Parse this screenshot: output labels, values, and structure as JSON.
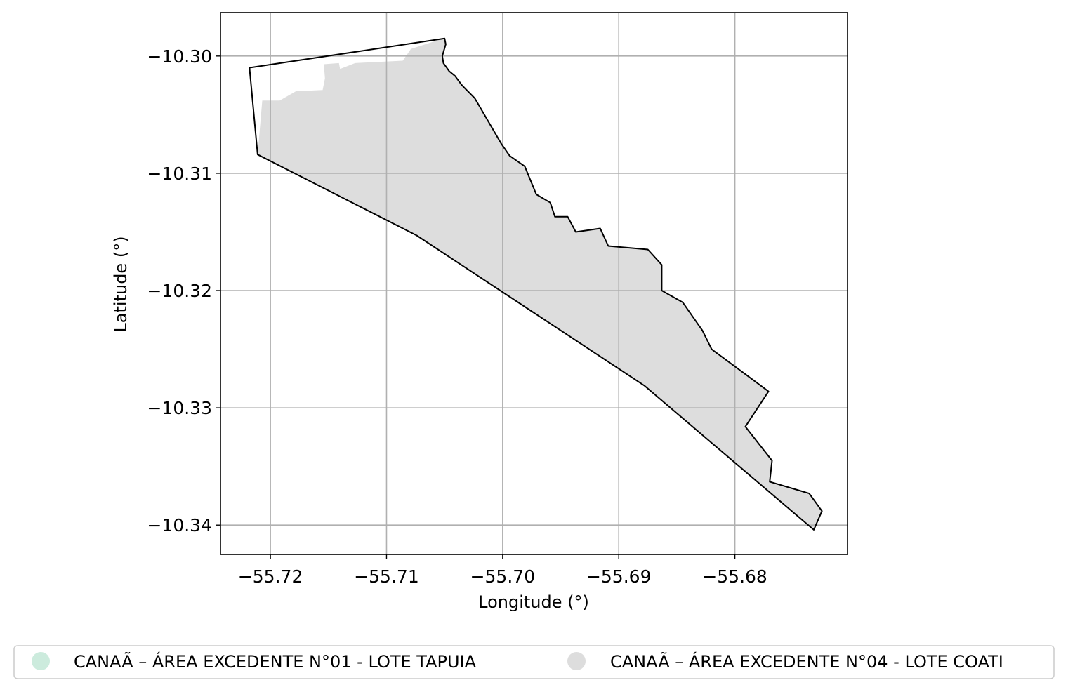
{
  "chart_data": {
    "type": "map",
    "xlabel": "Longitude (°)",
    "ylabel": "Latitude (°)",
    "xlim": [
      -55.7243,
      -55.6703
    ],
    "ylim": [
      -10.3425,
      -10.2963
    ],
    "grid": true,
    "x_ticks": [
      {
        "value": -55.72,
        "label": "−55.72"
      },
      {
        "value": -55.71,
        "label": "−55.71"
      },
      {
        "value": -55.7,
        "label": "−55.70"
      },
      {
        "value": -55.69,
        "label": "−55.69"
      },
      {
        "value": -55.68,
        "label": "−55.68"
      }
    ],
    "y_ticks": [
      {
        "value": -10.3,
        "label": "−10.30"
      },
      {
        "value": -10.31,
        "label": "−10.31"
      },
      {
        "value": -10.32,
        "label": "−10.32"
      },
      {
        "value": -10.33,
        "label": "−10.33"
      },
      {
        "value": -10.34,
        "label": "−10.34"
      }
    ],
    "legend_position": "bottom",
    "series": [
      {
        "name": "CANAÃ – ÁREA EXCEDENTE N°01 - LOTE TAPUIA",
        "color": "#ccebdd",
        "fill": "none",
        "outline": [
          [
            -55.7218,
            -10.301
          ],
          [
            -55.705,
            -10.2985
          ],
          [
            -55.7049,
            -10.299
          ],
          [
            -55.7052,
            -10.3
          ],
          [
            -55.7051,
            -10.3006
          ],
          [
            -55.7046,
            -10.3013
          ],
          [
            -55.7041,
            -10.3017
          ],
          [
            -55.7035,
            -10.3025
          ],
          [
            -55.7024,
            -10.3036
          ],
          [
            -55.7001,
            -10.3075
          ],
          [
            -55.6994,
            -10.3085
          ],
          [
            -55.6981,
            -10.3094
          ],
          [
            -55.6971,
            -10.3118
          ],
          [
            -55.6959,
            -10.3125
          ],
          [
            -55.6955,
            -10.3137
          ],
          [
            -55.6944,
            -10.3137
          ],
          [
            -55.6937,
            -10.315
          ],
          [
            -55.6916,
            -10.3147
          ],
          [
            -55.6909,
            -10.3162
          ],
          [
            -55.6875,
            -10.3165
          ],
          [
            -55.6863,
            -10.3178
          ],
          [
            -55.6863,
            -10.32
          ],
          [
            -55.6845,
            -10.321
          ],
          [
            -55.6828,
            -10.3234
          ],
          [
            -55.682,
            -10.325
          ],
          [
            -55.6771,
            -10.3286
          ],
          [
            -55.6791,
            -10.3316
          ],
          [
            -55.6768,
            -10.3345
          ],
          [
            -55.677,
            -10.3363
          ],
          [
            -55.6736,
            -10.3373
          ],
          [
            -55.6725,
            -10.3388
          ],
          [
            -55.6732,
            -10.3404
          ],
          [
            -55.6878,
            -10.3281
          ],
          [
            -55.7074,
            -10.3153
          ],
          [
            -55.7211,
            -10.3084
          ]
        ]
      },
      {
        "name": "CANAÃ – ÁREA EXCEDENTE N°04 - LOTE COATI",
        "color": "#dddddd",
        "fill": [
          [
            -55.7207,
            -10.3038
          ],
          [
            -55.7192,
            -10.3038
          ],
          [
            -55.7178,
            -10.303
          ],
          [
            -55.7155,
            -10.3029
          ],
          [
            -55.7153,
            -10.3019
          ],
          [
            -55.7154,
            -10.3007
          ],
          [
            -55.7141,
            -10.3006
          ],
          [
            -55.714,
            -10.3011
          ],
          [
            -55.7127,
            -10.3006
          ],
          [
            -55.7086,
            -10.3004
          ],
          [
            -55.7079,
            -10.2994
          ],
          [
            -55.7051,
            -10.2985
          ],
          [
            -55.7049,
            -10.299
          ],
          [
            -55.7052,
            -10.3
          ],
          [
            -55.7051,
            -10.3006
          ],
          [
            -55.7046,
            -10.3013
          ],
          [
            -55.7041,
            -10.3017
          ],
          [
            -55.7035,
            -10.3025
          ],
          [
            -55.7024,
            -10.3036
          ],
          [
            -55.7001,
            -10.3075
          ],
          [
            -55.6994,
            -10.3085
          ],
          [
            -55.6981,
            -10.3094
          ],
          [
            -55.6971,
            -10.3118
          ],
          [
            -55.6959,
            -10.3125
          ],
          [
            -55.6955,
            -10.3137
          ],
          [
            -55.6944,
            -10.3137
          ],
          [
            -55.6937,
            -10.315
          ],
          [
            -55.6916,
            -10.3147
          ],
          [
            -55.6909,
            -10.3162
          ],
          [
            -55.6875,
            -10.3165
          ],
          [
            -55.6863,
            -10.3178
          ],
          [
            -55.6863,
            -10.32
          ],
          [
            -55.6845,
            -10.321
          ],
          [
            -55.6828,
            -10.3234
          ],
          [
            -55.682,
            -10.325
          ],
          [
            -55.6771,
            -10.3286
          ],
          [
            -55.6791,
            -10.3316
          ],
          [
            -55.6768,
            -10.3345
          ],
          [
            -55.677,
            -10.3363
          ],
          [
            -55.6736,
            -10.3373
          ],
          [
            -55.6725,
            -10.3388
          ],
          [
            -55.6732,
            -10.3404
          ],
          [
            -55.6878,
            -10.3281
          ],
          [
            -55.7074,
            -10.3153
          ],
          [
            -55.7211,
            -10.3084
          ]
        ],
        "outline": "none"
      }
    ]
  }
}
